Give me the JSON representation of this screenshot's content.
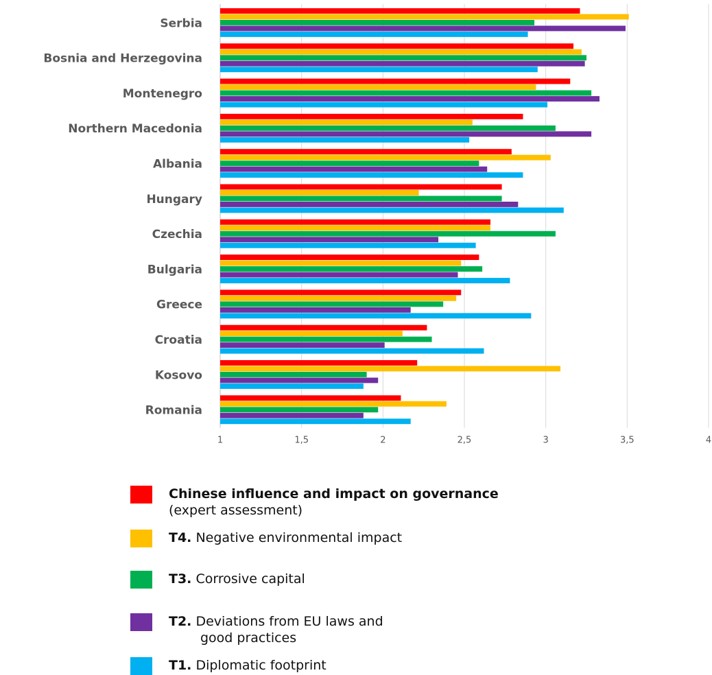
{
  "chart_data": {
    "type": "bar",
    "orientation": "horizontal",
    "categories": [
      "Serbia",
      "Bosnia and Herzegovina",
      "Montenegro",
      "Northern Macedonia",
      "Albania",
      "Hungary",
      "Czechia",
      "Bulgaria",
      "Greece",
      "Croatia",
      "Kosovo",
      "Romania"
    ],
    "series": [
      {
        "name": "Chinese influence and impact on governance (expert assessment)",
        "color": "#ff0000",
        "values": [
          3.21,
          3.17,
          3.15,
          2.86,
          2.79,
          2.73,
          2.66,
          2.59,
          2.48,
          2.27,
          2.21,
          2.11
        ]
      },
      {
        "name": "T4. Negative environmental impact",
        "color": "#ffc000",
        "values": [
          3.51,
          3.22,
          2.94,
          2.55,
          3.03,
          2.22,
          2.66,
          2.48,
          2.45,
          2.12,
          3.09,
          2.39
        ]
      },
      {
        "name": "T3. Corrosive capital",
        "color": "#00b050",
        "values": [
          2.93,
          3.25,
          3.28,
          3.06,
          2.59,
          2.73,
          3.06,
          2.61,
          2.37,
          2.3,
          1.9,
          1.97
        ]
      },
      {
        "name": "T2. Deviations from EU laws and good practices",
        "color": "#7030a0",
        "values": [
          3.49,
          3.24,
          3.33,
          3.28,
          2.64,
          2.83,
          2.34,
          2.46,
          2.17,
          2.01,
          1.97,
          1.88
        ]
      },
      {
        "name": "T1. Diplomatic footprint",
        "color": "#00b0f0",
        "values": [
          2.89,
          2.95,
          3.01,
          2.53,
          2.86,
          3.11,
          2.57,
          2.78,
          2.91,
          2.62,
          1.88,
          2.17
        ]
      }
    ],
    "xlim": [
      1,
      4
    ],
    "xticks": [
      "1",
      "1,5",
      "2",
      "2,5",
      "3",
      "3,5",
      "4"
    ],
    "xtick_values": [
      1,
      1.5,
      2,
      2.5,
      3,
      3.5,
      4
    ],
    "grid": "vertical",
    "legend_position": "bottom"
  },
  "legend": [
    {
      "prefix": "",
      "text": "Chinese influence and impact on governance",
      "line2": "(expert assessment)",
      "color": "#ff0000"
    },
    {
      "prefix": "T4.",
      "text": "Negative environmental impact",
      "line2": "",
      "color": "#ffc000"
    },
    {
      "prefix": "T3.",
      "text": "Corrosive capital",
      "line2": "",
      "color": "#00b050"
    },
    {
      "prefix": "T2.",
      "text": "Deviations from EU laws and",
      "line2": "good practices",
      "color": "#7030a0"
    },
    {
      "prefix": "T1.",
      "text": "Diplomatic footprint",
      "line2": "",
      "color": "#00b0f0"
    }
  ]
}
